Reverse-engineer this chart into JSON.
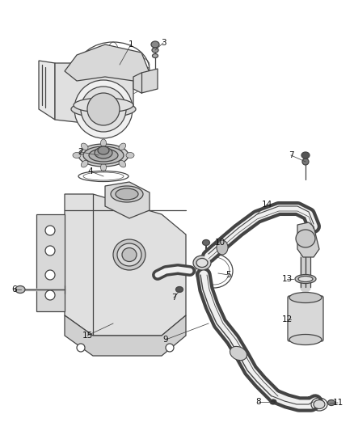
{
  "background_color": "#ffffff",
  "fig_width": 4.38,
  "fig_height": 5.33,
  "dpi": 100,
  "label_fontsize": 7.5,
  "label_color": "#111111",
  "line_color": "#444444",
  "comp_color": "#444444",
  "comp_lw": 0.9
}
